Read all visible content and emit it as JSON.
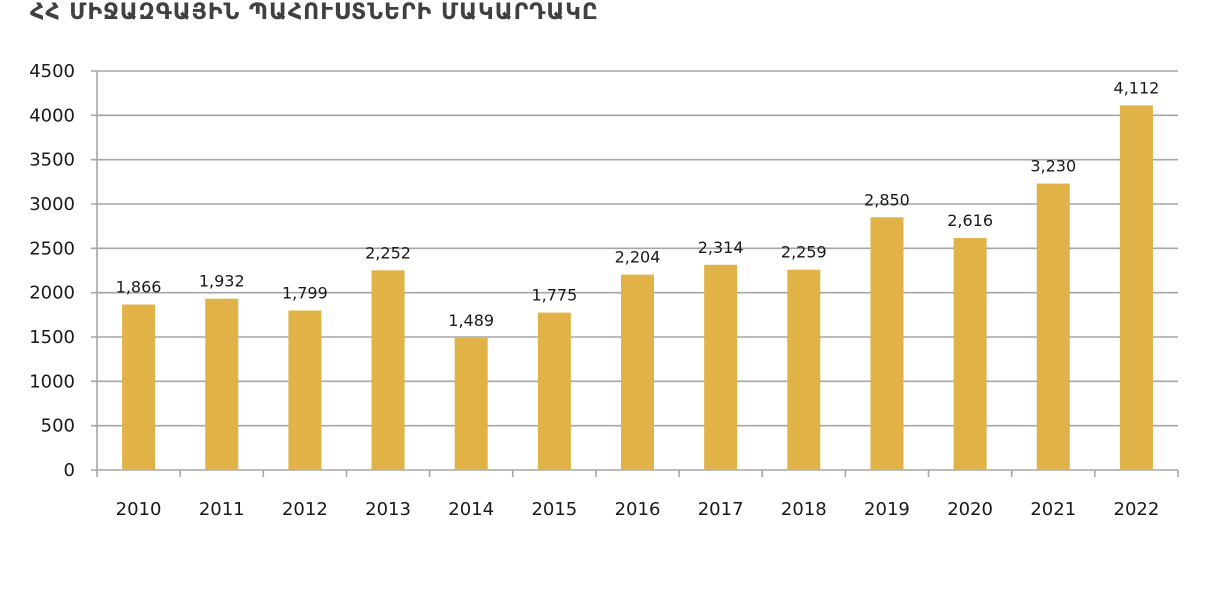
{
  "chart_data": {
    "type": "bar",
    "title": "ՀՀ ՄԻՋԱԶԳԱՅԻՆ ՊԱՀՈՒՍՏՆԵՐԻ ՄԱԿԱՐԴԱԿԸ",
    "categories": [
      "2010",
      "2011",
      "2012",
      "2013",
      "2014",
      "2015",
      "2016",
      "2017",
      "2018",
      "2019",
      "2020",
      "2021",
      "2022"
    ],
    "values": [
      1866,
      1932,
      1799,
      2252,
      1489,
      1775,
      2204,
      2314,
      2259,
      2850,
      2616,
      3230,
      4112
    ],
    "data_labels": [
      "1,866",
      "1,932",
      "1,799",
      "2,252",
      "1,489",
      "1,775",
      "2,204",
      "2,314",
      "2,259",
      "2,850",
      "2,616",
      "3,230",
      "4,112"
    ],
    "y_ticks": [
      "0",
      "500",
      "1000",
      "1500",
      "2000",
      "2500",
      "3000",
      "3500",
      "4000",
      "4500"
    ],
    "ylim": [
      0,
      4500
    ],
    "grid": true,
    "legend": "none",
    "bar_color": "#E0B248",
    "grid_color": "#a6a6a6"
  }
}
